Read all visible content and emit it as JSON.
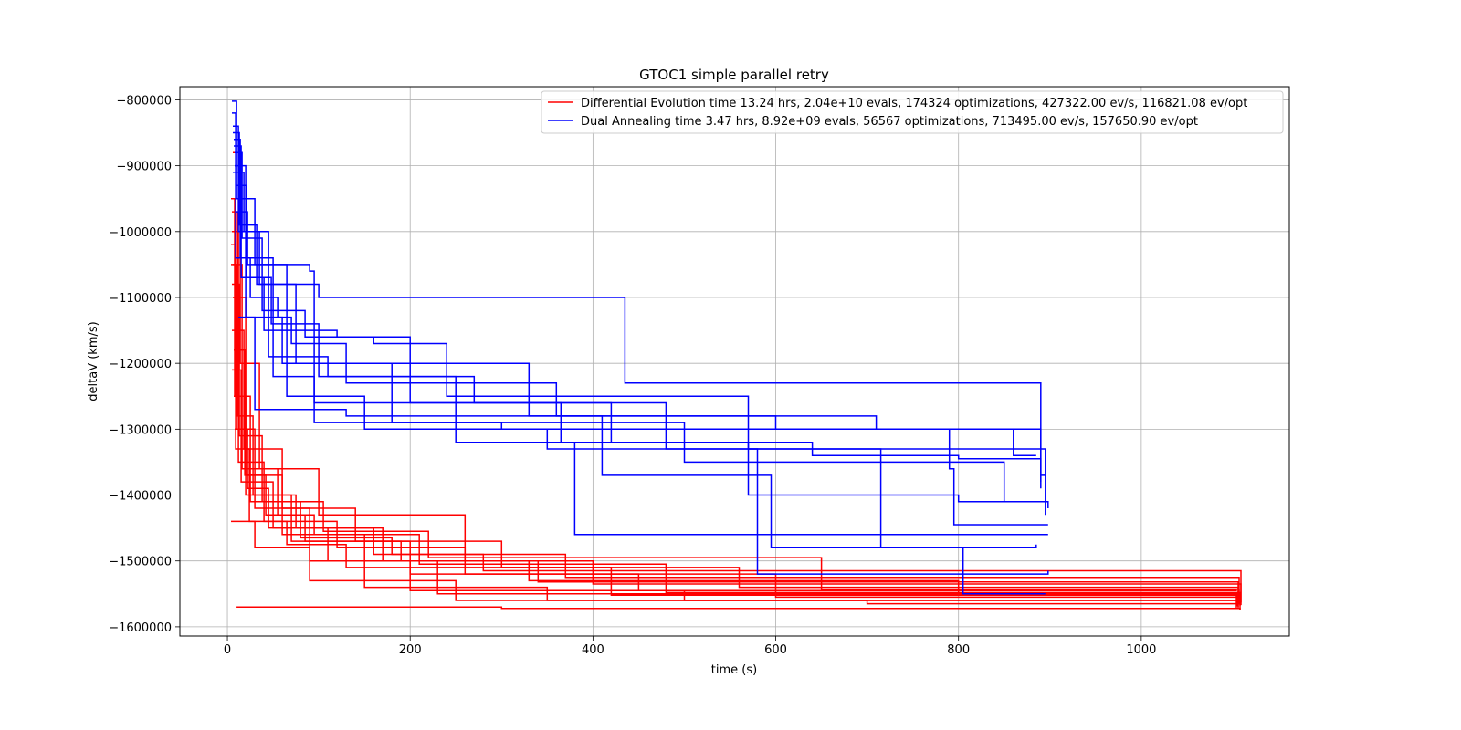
{
  "chart_data": {
    "type": "line",
    "title": "GTOC1 simple parallel retry",
    "xlabel": "time (s)",
    "ylabel": "deltaV (km/s)",
    "xlim": [
      -52,
      1162
    ],
    "ylim": [
      -1614000,
      -780000
    ],
    "xticks": [
      0,
      200,
      400,
      600,
      800,
      1000
    ],
    "yticks": [
      -800000,
      -900000,
      -1000000,
      -1100000,
      -1200000,
      -1300000,
      -1400000,
      -1500000,
      -1600000
    ],
    "xtick_labels": [
      "0",
      "200",
      "400",
      "600",
      "800",
      "1000"
    ],
    "ytick_labels": [
      "−800000",
      "−900000",
      "−1000000",
      "−1100000",
      "−1200000",
      "−1300000",
      "−1400000",
      "−1500000",
      "−1600000"
    ],
    "grid": true,
    "legend_position": "top-right",
    "series": [
      {
        "name": "Differential Evolution time 13.24 hrs, 2.04e+10 evals, 174324 optimizations, 427322.00 ev/s, 116821.08 ev/opt",
        "color": "#ff0000",
        "traces": [
          [
            [
              4,
              -950000
            ],
            [
              8,
              -1250000
            ],
            [
              20,
              -1370000
            ],
            [
              60,
              -1460000
            ],
            [
              150,
              -1540000
            ],
            [
              350,
              -1560000
            ],
            [
              700,
              -1565000
            ],
            [
              1108,
              -1568000
            ]
          ],
          [
            [
              4,
              -1050000
            ],
            [
              10,
              -1300000
            ],
            [
              30,
              -1420000
            ],
            [
              90,
              -1500000
            ],
            [
              200,
              -1545000
            ],
            [
              500,
              -1560000
            ],
            [
              1106,
              -1572000
            ]
          ],
          [
            [
              5,
              -1000000
            ],
            [
              12,
              -1350000
            ],
            [
              40,
              -1440000
            ],
            [
              120,
              -1480000
            ],
            [
              260,
              -1520000
            ],
            [
              600,
              -1555000
            ],
            [
              1105,
              -1560000
            ]
          ],
          [
            [
              5,
              -1210000
            ],
            [
              15,
              -1380000
            ],
            [
              50,
              -1450000
            ],
            [
              170,
              -1500000
            ],
            [
              330,
              -1530000
            ],
            [
              800,
              -1550000
            ],
            [
              1107,
              -1555000
            ]
          ],
          [
            [
              6,
              -1100000
            ],
            [
              20,
              -1400000
            ],
            [
              70,
              -1470000
            ],
            [
              200,
              -1520000
            ],
            [
              450,
              -1545000
            ],
            [
              1104,
              -1546000
            ]
          ],
          [
            [
              6,
              -880000
            ],
            [
              14,
              -1200000
            ],
            [
              35,
              -1360000
            ],
            [
              100,
              -1430000
            ],
            [
              260,
              -1500000
            ],
            [
              400,
              -1535000
            ],
            [
              1109,
              -1563000
            ]
          ],
          [
            [
              4,
              -1440000
            ],
            [
              12,
              -1440000
            ],
            [
              30,
              -1480000
            ],
            [
              90,
              -1530000
            ],
            [
              250,
              -1560000
            ],
            [
              1108,
              -1575000
            ]
          ],
          [
            [
              5,
              -1150000
            ],
            [
              18,
              -1330000
            ],
            [
              60,
              -1420000
            ],
            [
              140,
              -1470000
            ],
            [
              300,
              -1510000
            ],
            [
              560,
              -1540000
            ],
            [
              1106,
              -1570000
            ]
          ],
          [
            [
              7,
              -1250000
            ],
            [
              25,
              -1410000
            ],
            [
              80,
              -1465000
            ],
            [
              180,
              -1490000
            ],
            [
              370,
              -1525000
            ],
            [
              1107,
              -1566000
            ]
          ],
          [
            [
              8,
              -1300000
            ],
            [
              22,
              -1390000
            ],
            [
              45,
              -1450000
            ],
            [
              110,
              -1500000
            ],
            [
              230,
              -1550000
            ],
            [
              1105,
              -1569000
            ]
          ],
          [
            [
              6,
              -1050000
            ],
            [
              16,
              -1360000
            ],
            [
              55,
              -1430000
            ],
            [
              95,
              -1460000
            ],
            [
              210,
              -1505000
            ],
            [
              480,
              -1548000
            ],
            [
              1108,
              -1562000
            ]
          ],
          [
            [
              5,
              -970000
            ],
            [
              11,
              -1280000
            ],
            [
              28,
              -1400000
            ],
            [
              75,
              -1450000
            ],
            [
              160,
              -1490000
            ],
            [
              280,
              -1515000
            ],
            [
              1109,
              -1567000
            ]
          ],
          [
            [
              4,
              -1020000
            ],
            [
              9,
              -1330000
            ],
            [
              24,
              -1440000
            ],
            [
              65,
              -1475000
            ],
            [
              130,
              -1510000
            ],
            [
              420,
              -1552000
            ],
            [
              1104,
              -1571000
            ]
          ],
          [
            [
              7,
              -1180000
            ],
            [
              19,
              -1370000
            ],
            [
              42,
              -1430000
            ],
            [
              85,
              -1470000
            ],
            [
              190,
              -1500000
            ],
            [
              340,
              -1532000
            ],
            [
              1106,
              -1558000
            ]
          ],
          [
            [
              5,
              -1080000
            ],
            [
              13,
              -1310000
            ],
            [
              38,
              -1410000
            ],
            [
              105,
              -1455000
            ],
            [
              220,
              -1495000
            ],
            [
              650,
              -1543000
            ],
            [
              1107,
              -1564000
            ]
          ],
          [
            [
              10,
              -1570000
            ],
            [
              60,
              -1570000
            ],
            [
              300,
              -1572000
            ],
            [
              1108,
              -1574000
            ]
          ]
        ]
      },
      {
        "name": "Dual Annealing time 3.47 hrs, 8.92e+09 evals, 56567 optimizations, 713495.00 ev/s, 157650.90 ev/opt",
        "color": "#0000ff",
        "traces": [
          [
            [
              5,
              -802000
            ],
            [
              10,
              -950000
            ],
            [
              30,
              -1050000
            ],
            [
              90,
              -1060000
            ],
            [
              95,
              -1290000
            ],
            [
              300,
              -1300000
            ],
            [
              860,
              -1340000
            ],
            [
              885,
              -1340000
            ]
          ],
          [
            [
              6,
              -840000
            ],
            [
              12,
              -1000000
            ],
            [
              35,
              -1080000
            ],
            [
              100,
              -1100000
            ],
            [
              430,
              -1100000
            ],
            [
              435,
              -1230000
            ],
            [
              890,
              -1370000
            ],
            [
              895,
              -1370000
            ]
          ],
          [
            [
              7,
              -870000
            ],
            [
              15,
              -1070000
            ],
            [
              40,
              -1150000
            ],
            [
              120,
              -1160000
            ],
            [
              160,
              -1170000
            ],
            [
              240,
              -1250000
            ],
            [
              560,
              -1250000
            ],
            [
              570,
              -1400000
            ],
            [
              800,
              -1410000
            ],
            [
              898,
              -1410000
            ]
          ],
          [
            [
              8,
              -900000
            ],
            [
              20,
              -1130000
            ],
            [
              60,
              -1200000
            ],
            [
              220,
              -1200000
            ],
            [
              330,
              -1280000
            ],
            [
              600,
              -1280000
            ],
            [
              710,
              -1300000
            ],
            [
              890,
              -1380000
            ]
          ],
          [
            [
              5,
              -820000
            ],
            [
              9,
              -1040000
            ],
            [
              25,
              -1100000
            ],
            [
              55,
              -1130000
            ],
            [
              70,
              -1170000
            ],
            [
              130,
              -1230000
            ],
            [
              360,
              -1260000
            ],
            [
              480,
              -1330000
            ],
            [
              895,
              -1430000
            ]
          ],
          [
            [
              6,
              -910000
            ],
            [
              18,
              -1000000
            ],
            [
              45,
              -1190000
            ],
            [
              110,
              -1220000
            ],
            [
              270,
              -1260000
            ],
            [
              365,
              -1320000
            ],
            [
              380,
              -1460000
            ],
            [
              898,
              -1460000
            ]
          ],
          [
            [
              7,
              -860000
            ],
            [
              14,
              -1040000
            ],
            [
              50,
              -1220000
            ],
            [
              95,
              -1260000
            ],
            [
              360,
              -1280000
            ],
            [
              410,
              -1370000
            ],
            [
              590,
              -1370000
            ],
            [
              595,
              -1480000
            ],
            [
              885,
              -1475000
            ]
          ],
          [
            [
              10,
              -970000
            ],
            [
              22,
              -1050000
            ],
            [
              65,
              -1250000
            ],
            [
              150,
              -1300000
            ],
            [
              350,
              -1330000
            ],
            [
              700,
              -1330000
            ],
            [
              715,
              -1480000
            ],
            [
              800,
              -1480000
            ],
            [
              805,
              -1550000
            ],
            [
              895,
              -1550000
            ]
          ],
          [
            [
              8,
              -880000
            ],
            [
              16,
              -1010000
            ],
            [
              38,
              -1120000
            ],
            [
              85,
              -1160000
            ],
            [
              200,
              -1260000
            ],
            [
              420,
              -1320000
            ],
            [
              640,
              -1340000
            ],
            [
              800,
              -1345000
            ],
            [
              890,
              -1390000
            ]
          ],
          [
            [
              9,
              -930000
            ],
            [
              21,
              -1070000
            ],
            [
              48,
              -1140000
            ],
            [
              100,
              -1220000
            ],
            [
              250,
              -1320000
            ],
            [
              570,
              -1330000
            ],
            [
              580,
              -1520000
            ],
            [
              898,
              -1515000
            ]
          ],
          [
            [
              6,
              -850000
            ],
            [
              13,
              -990000
            ],
            [
              32,
              -1080000
            ],
            [
              75,
              -1200000
            ],
            [
              180,
              -1290000
            ],
            [
              480,
              -1290000
            ],
            [
              500,
              -1350000
            ],
            [
              840,
              -1350000
            ],
            [
              850,
              -1410000
            ],
            [
              898,
              -1420000
            ]
          ],
          [
            [
              12,
              -1130000
            ],
            [
              30,
              -1270000
            ],
            [
              130,
              -1280000
            ],
            [
              600,
              -1300000
            ],
            [
              790,
              -1360000
            ],
            [
              795,
              -1445000
            ],
            [
              898,
              -1445000
            ]
          ]
        ]
      }
    ]
  }
}
